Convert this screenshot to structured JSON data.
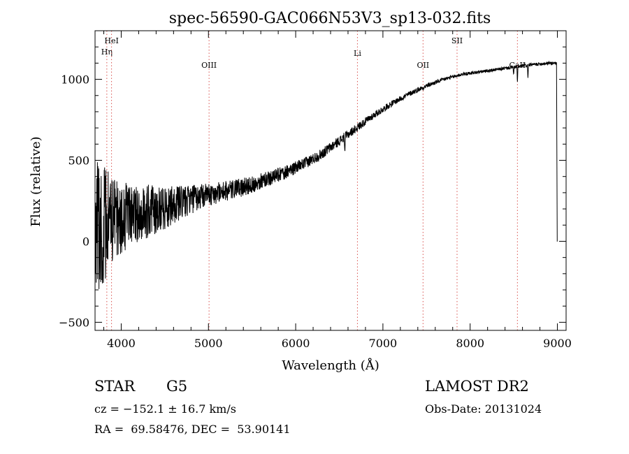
{
  "chart_data": {
    "type": "line",
    "title": "spec-56590-GAC066N53V3_sp13-032.fits",
    "xlabel": "Wavelength (Å)",
    "ylabel": "Flux (relative)",
    "xlim": [
      3700,
      9100
    ],
    "ylim": [
      -550,
      1300
    ],
    "x_ticks": [
      4000,
      5000,
      6000,
      7000,
      8000,
      9000
    ],
    "y_ticks": [
      -500,
      0,
      500,
      1000
    ],
    "grid": false,
    "line_color": "#000000",
    "marker_color": "#d9534f",
    "spectral_lines": [
      {
        "label": "Hη",
        "wavelength": 3835
      },
      {
        "label": "HeI",
        "wavelength": 3889
      },
      {
        "label": "OIII",
        "wavelength": 5007
      },
      {
        "label": "Li",
        "wavelength": 6708
      },
      {
        "label": "OII",
        "wavelength": 7460
      },
      {
        "label": "SII",
        "wavelength": 7850
      },
      {
        "label": "CaII",
        "wavelength": 8542
      }
    ],
    "continuum": [
      [
        3700,
        100
      ],
      [
        3900,
        130
      ],
      [
        4100,
        160
      ],
      [
        4300,
        185
      ],
      [
        4500,
        210
      ],
      [
        4700,
        240
      ],
      [
        4900,
        275
      ],
      [
        5100,
        300
      ],
      [
        5300,
        320
      ],
      [
        5500,
        350
      ],
      [
        5700,
        390
      ],
      [
        5900,
        430
      ],
      [
        6100,
        480
      ],
      [
        6300,
        540
      ],
      [
        6500,
        620
      ],
      [
        6700,
        700
      ],
      [
        6900,
        780
      ],
      [
        7100,
        850
      ],
      [
        7300,
        910
      ],
      [
        7500,
        960
      ],
      [
        7700,
        1000
      ],
      [
        7900,
        1030
      ],
      [
        8100,
        1045
      ],
      [
        8300,
        1060
      ],
      [
        8500,
        1075
      ],
      [
        8700,
        1090
      ],
      [
        8900,
        1100
      ],
      [
        8990,
        1100
      ]
    ],
    "noise": [
      [
        3700,
        430
      ],
      [
        3800,
        380
      ],
      [
        3900,
        260
      ],
      [
        4000,
        220
      ],
      [
        4200,
        180
      ],
      [
        4400,
        150
      ],
      [
        4600,
        120
      ],
      [
        4800,
        90
      ],
      [
        5000,
        70
      ],
      [
        5300,
        60
      ],
      [
        5600,
        50
      ],
      [
        6000,
        38
      ],
      [
        6500,
        30
      ],
      [
        7000,
        20
      ],
      [
        7500,
        14
      ],
      [
        8000,
        10
      ],
      [
        9000,
        10
      ]
    ],
    "absorption_features": [
      {
        "wavelength": 6563,
        "depth": 110
      },
      {
        "wavelength": 8498,
        "depth": 55
      },
      {
        "wavelength": 8542,
        "depth": 110
      },
      {
        "wavelength": 8662,
        "depth": 90
      }
    ],
    "edge": {
      "start": 8990,
      "end": 9000,
      "top": 1080,
      "bottom": 0
    }
  },
  "info": {
    "object_class": "STAR",
    "subclass": "G5",
    "survey": "LAMOST DR2",
    "redshift": "cz = −152.1 ± 16.7 km/s",
    "obs_date": "Obs-Date: 20131024",
    "coords": "RA =  69.58476, DEC =  53.90141"
  }
}
